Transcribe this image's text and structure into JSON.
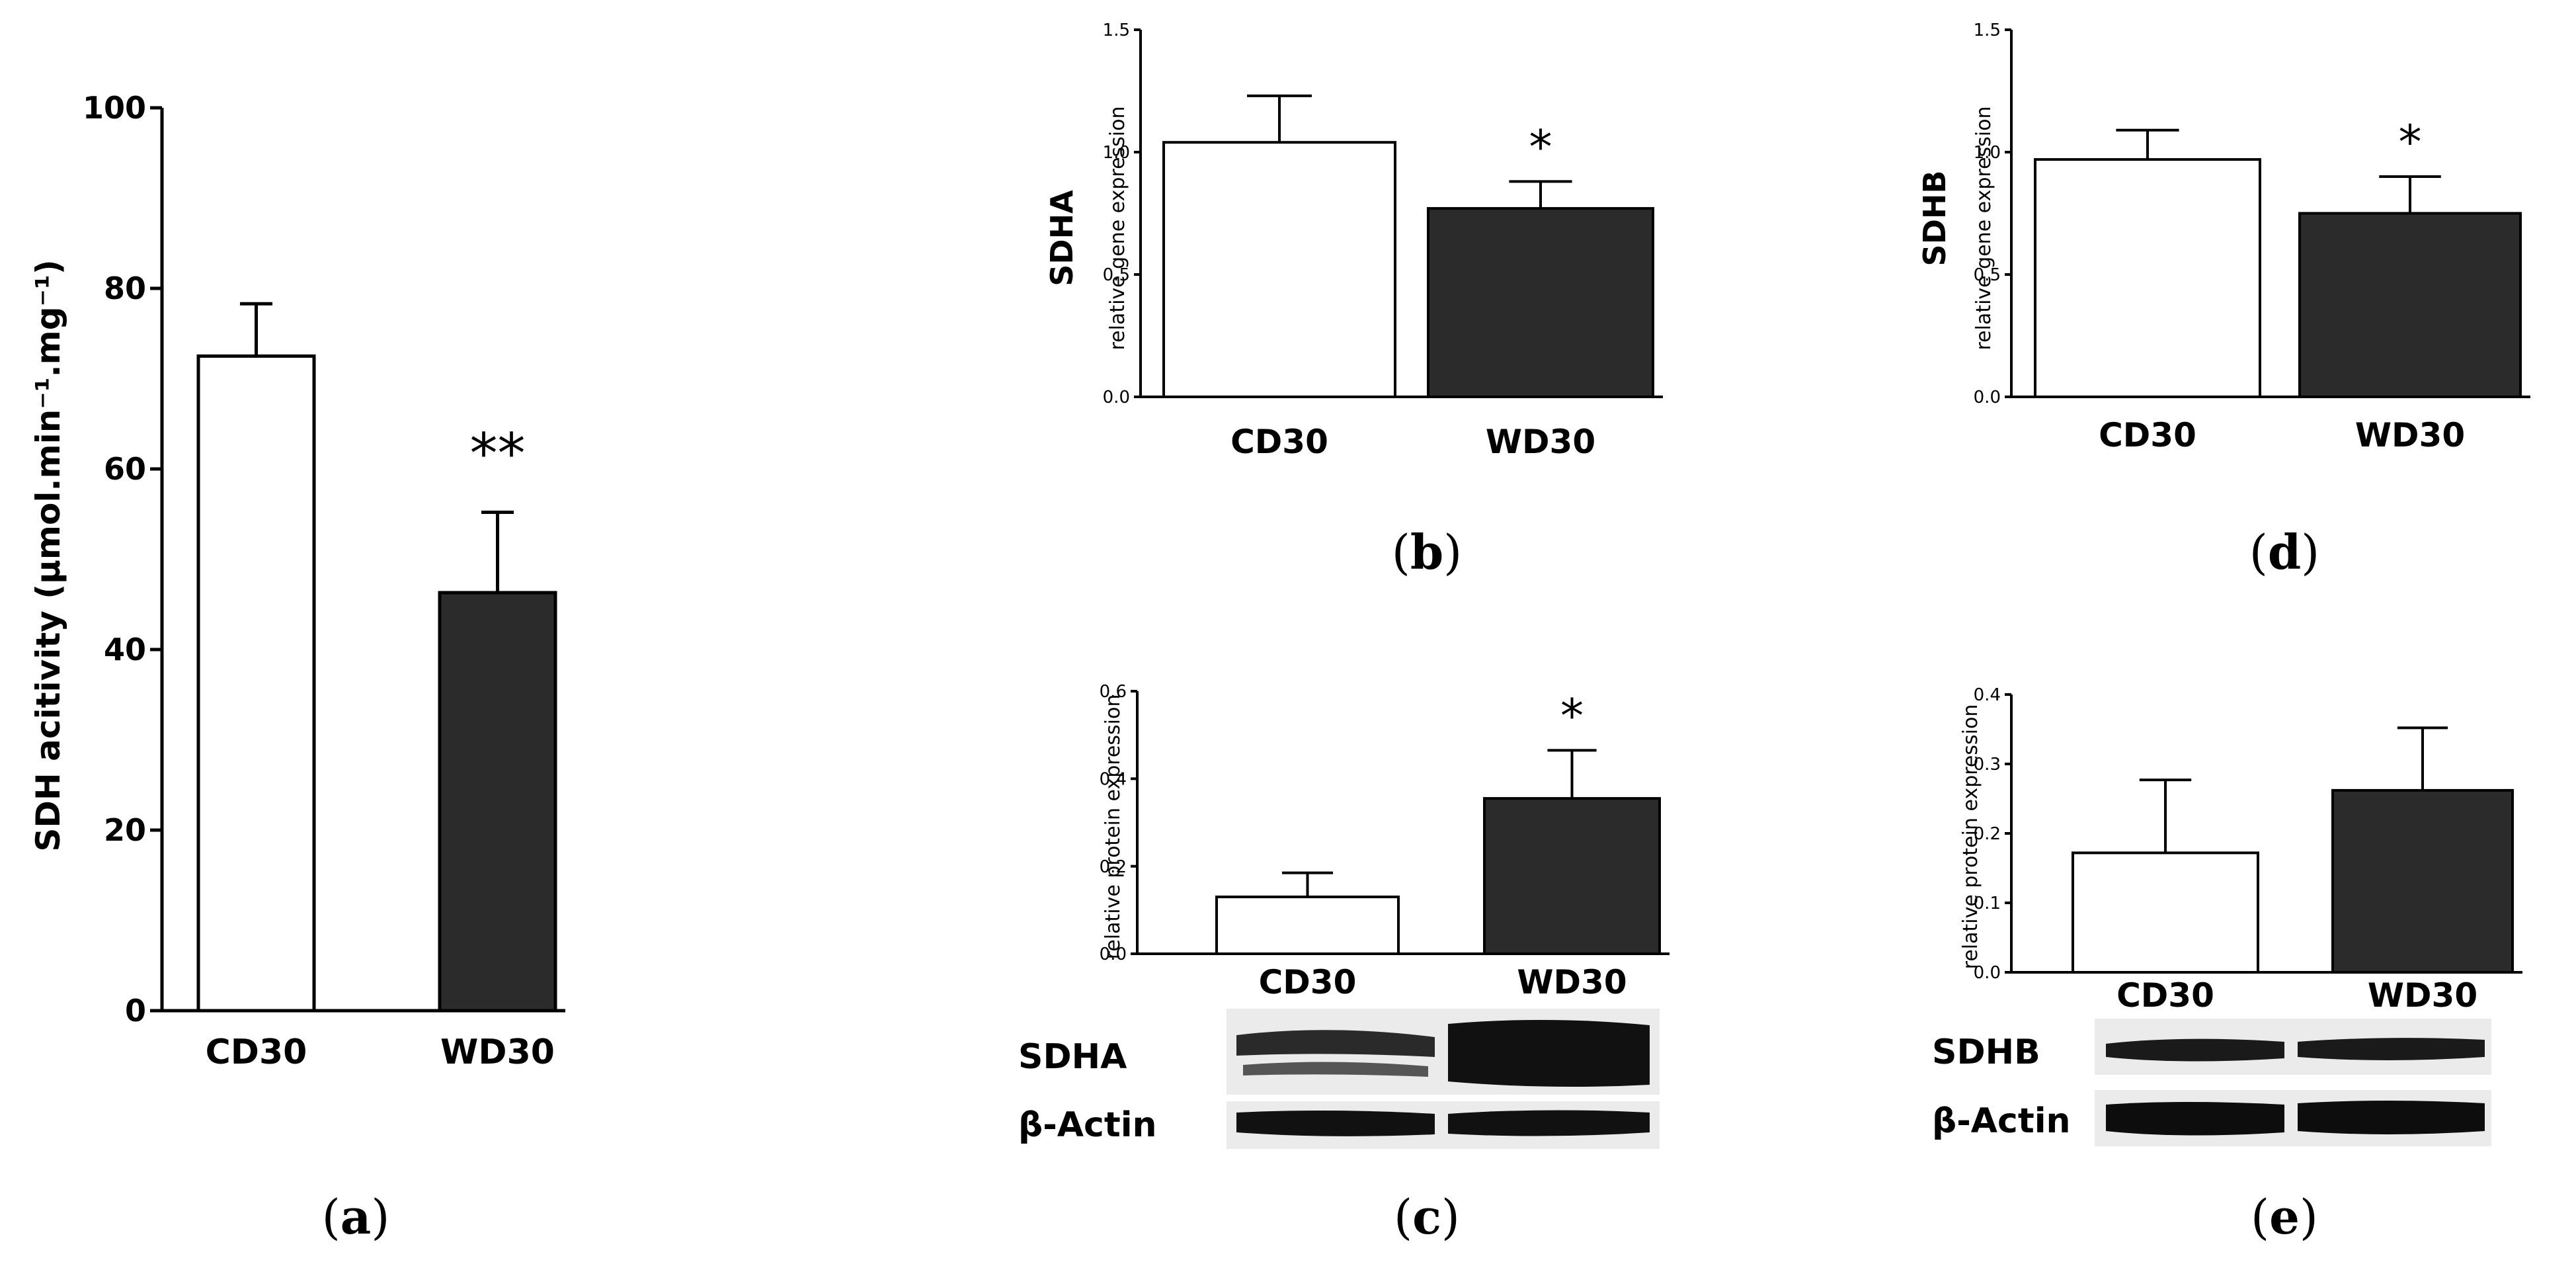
{
  "colors": {
    "control_fill": "#ffffff",
    "treatment_fill": "#2b2b2b",
    "stroke": "#000000",
    "band": "#1a1a1a"
  },
  "panels": [
    {
      "id": "a",
      "label_char": "a",
      "ylabel": "SDH acitivity (µmol.min⁻¹.mg⁻¹)",
      "yticks": [
        "0",
        "20",
        "40",
        "60",
        "80",
        "100"
      ]
    },
    {
      "id": "b",
      "label_char": "b",
      "gene": "SDHA",
      "ylabel": "relative gene expression",
      "yticks": [
        "0.0",
        "0.5",
        "1.0",
        "1.5"
      ]
    },
    {
      "id": "c",
      "label_char": "c",
      "ylabel": "relative protein expression",
      "yticks": [
        "0.0",
        "0.2",
        "0.4",
        "0.6"
      ],
      "blot_labels": [
        "SDHA",
        "β-Actin"
      ]
    },
    {
      "id": "d",
      "label_char": "d",
      "gene": "SDHB",
      "ylabel": "relative gene expression",
      "yticks": [
        "0.0",
        "0.5",
        "1.0",
        "1.5"
      ]
    },
    {
      "id": "e",
      "label_char": "e",
      "ylabel": "relative protein expression",
      "yticks": [
        "0.0",
        "0.1",
        "0.2",
        "0.3",
        "0.4"
      ],
      "blot_labels": [
        "SDHB",
        "β-Actin"
      ]
    }
  ],
  "chart_data": [
    {
      "panel": "a",
      "type": "bar",
      "categories": [
        "CD30",
        "WD30"
      ],
      "values": [
        72.5,
        46.3
      ],
      "errors": [
        5.8,
        8.9
      ],
      "ylim": [
        0,
        100
      ],
      "ylabel": "SDH acitivity (µmol.min⁻¹.mg⁻¹)",
      "significance": [
        "",
        "**"
      ]
    },
    {
      "panel": "b",
      "type": "bar",
      "categories": [
        "CD30",
        "WD30"
      ],
      "values": [
        1.04,
        0.77
      ],
      "errors": [
        0.19,
        0.11
      ],
      "ylim": [
        0,
        1.5
      ],
      "ylabel": "relative gene expression",
      "significance": [
        "",
        "*"
      ]
    },
    {
      "panel": "c",
      "type": "bar",
      "categories": [
        "CD30",
        "WD30"
      ],
      "values": [
        0.13,
        0.355
      ],
      "errors": [
        0.055,
        0.11
      ],
      "ylim": [
        0,
        0.6
      ],
      "ylabel": "relative protein expression",
      "significance": [
        "",
        "*"
      ]
    },
    {
      "panel": "d",
      "type": "bar",
      "categories": [
        "CD30",
        "WD30"
      ],
      "values": [
        0.97,
        0.75
      ],
      "errors": [
        0.12,
        0.15
      ],
      "ylim": [
        0,
        1.5
      ],
      "ylabel": "relative gene expression",
      "significance": [
        "",
        "*"
      ]
    },
    {
      "panel": "e",
      "type": "bar",
      "categories": [
        "CD30",
        "WD30"
      ],
      "values": [
        0.172,
        0.262
      ],
      "errors": [
        0.105,
        0.09
      ],
      "ylim": [
        0,
        0.4
      ],
      "ylabel": "relative protein expression",
      "significance": [
        "",
        ""
      ]
    }
  ]
}
